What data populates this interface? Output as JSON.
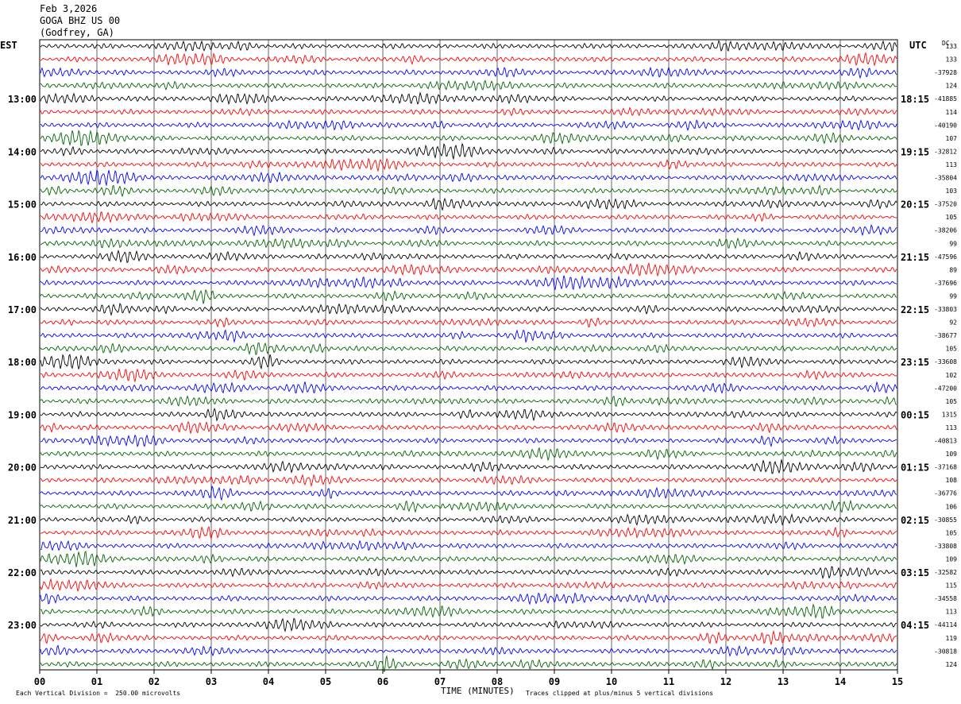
{
  "header": {
    "date": "Feb 3,2026",
    "station": "GOGA BHZ US 00",
    "location": "(Godfrey, GA)"
  },
  "axes": {
    "left_label": "EST",
    "right_label": "UTC",
    "dc_label": "DC",
    "x_title": "TIME (MINUTES)"
  },
  "footer": {
    "scale_note": "Each Vertical Division =  250.00 microvolts",
    "clip_note": "Traces clipped at plus/minus 5 vertical divisions"
  },
  "colors": {
    "trace_cycle": [
      "#000000",
      "#ff0000",
      "#0000ff",
      "#006400"
    ],
    "grid": "#000000"
  },
  "chart_data": {
    "type": "line",
    "title": "",
    "xlabel": "TIME (MINUTES)",
    "xlim": [
      0,
      15
    ],
    "x_ticks": [
      "00",
      "01",
      "02",
      "03",
      "04",
      "05",
      "06",
      "07",
      "08",
      "09",
      "10",
      "11",
      "12",
      "13",
      "14",
      "15"
    ],
    "rows": 48,
    "rows_per_hour": 4,
    "left_hour_labels": [
      "13:00",
      "14:00",
      "15:00",
      "16:00",
      "17:00",
      "18:00",
      "19:00",
      "20:00",
      "21:00",
      "22:00",
      "23:00"
    ],
    "right_hour_labels": [
      "18:15",
      "19:15",
      "20:15",
      "21:15",
      "22:15",
      "23:15",
      "00:15",
      "01:15",
      "02:15",
      "03:15",
      "04:15"
    ],
    "right_dc_values": [
      "133",
      "133",
      "-37928",
      "124",
      "-41885",
      "114",
      "-40190",
      "107",
      "-32812",
      "113",
      "-35804",
      "103",
      "-37520",
      "105",
      "-38206",
      "99",
      "-47596",
      "89",
      "-37696",
      "99",
      "-33803",
      "92",
      "-38677",
      "105",
      "-33608",
      "102",
      "-47200",
      "105",
      "1315",
      "113",
      "-40813",
      "109",
      "-37168",
      "108",
      "-36776",
      "106",
      "-30855",
      "105",
      "-33808",
      "109",
      "-32582",
      "115",
      "-34558",
      "113",
      "-44114",
      "119",
      "-30818",
      "124"
    ]
  }
}
